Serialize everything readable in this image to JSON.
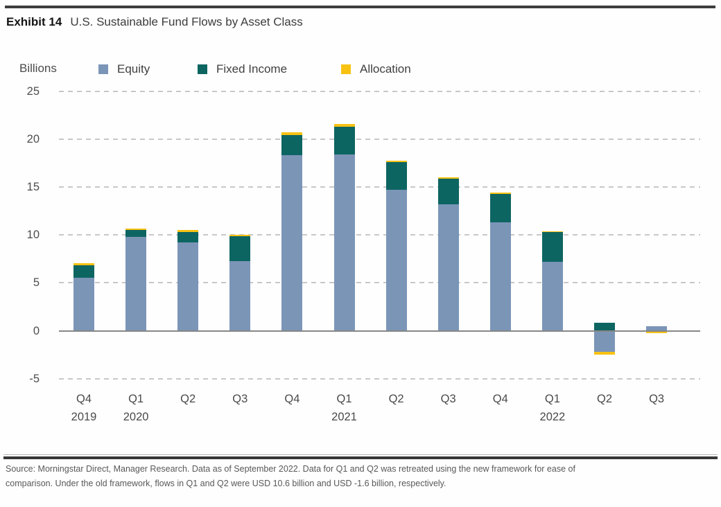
{
  "header": {
    "exhibit_label": "Exhibit 14",
    "title": "U.S. Sustainable Fund Flows by Asset Class"
  },
  "chart_data": {
    "type": "bar",
    "stacked": true,
    "title": "U.S. Sustainable Fund Flows by Asset Class",
    "ylabel": "Billions",
    "xlabel": "",
    "ylim": [
      -5,
      25
    ],
    "grid": "dashed horizontal gridlines, solid zero axis",
    "legend_position": "top",
    "categories": [
      "Q4 2019",
      "Q1 2020",
      "Q2 2020",
      "Q3 2020",
      "Q4 2020",
      "Q1 2021",
      "Q2 2021",
      "Q3 2021",
      "Q4 2021",
      "Q1 2022",
      "Q2 2022",
      "Q3 2022"
    ],
    "x_quarter_labels": [
      "Q4",
      "Q1",
      "Q2",
      "Q3",
      "Q4",
      "Q1",
      "Q2",
      "Q3",
      "Q4",
      "Q1",
      "Q2",
      "Q3"
    ],
    "x_year_labels": {
      "0": "2019",
      "1": "2020",
      "5": "2021",
      "9": "2022"
    },
    "y_ticks": [
      25,
      20,
      15,
      10,
      5,
      0,
      -5
    ],
    "series": [
      {
        "name": "Equity",
        "color": "#7b95b7",
        "values": [
          5.5,
          9.8,
          9.2,
          7.3,
          18.3,
          18.4,
          14.7,
          13.2,
          11.3,
          7.2,
          -2.2,
          0.5
        ]
      },
      {
        "name": "Fixed Income",
        "color": "#0d6562",
        "values": [
          1.3,
          0.7,
          1.1,
          2.6,
          2.1,
          2.9,
          2.9,
          2.7,
          3.0,
          3.1,
          0.8,
          0.0
        ]
      },
      {
        "name": "Allocation",
        "color": "#f8c213",
        "values": [
          0.25,
          0.2,
          0.2,
          0.15,
          0.3,
          0.3,
          0.15,
          0.15,
          0.1,
          0.1,
          -0.3,
          -0.25
        ]
      }
    ]
  },
  "colors": {
    "equity": "#7b95b7",
    "fixed_income": "#0d6562",
    "allocation": "#f8c213",
    "gridline": "#c7c7c7",
    "zero_axis": "#868686",
    "rule": "#3d3d3d"
  },
  "footer": {
    "source_line1": "Source: Morningstar Direct, Manager Research. Data as of September 2022. Data for Q1 and Q2 was retreated using the new framework for ease of",
    "source_line2": "comparison. Under the old framework, flows in Q1 and Q2 were USD 10.6 billion and USD -1.6 billion, respectively."
  }
}
